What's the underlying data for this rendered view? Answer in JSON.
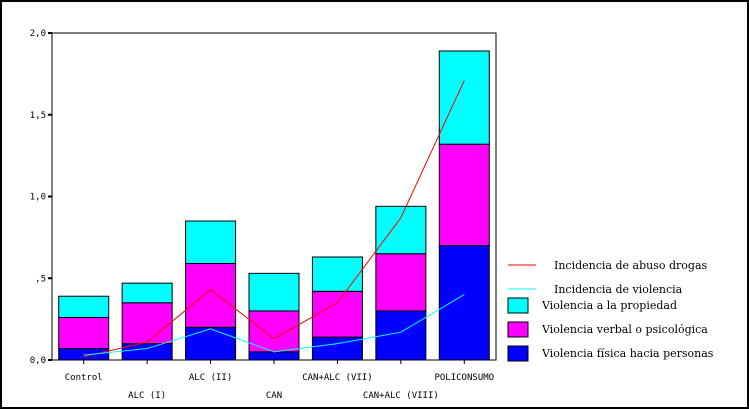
{
  "chart_data": {
    "type": "bar",
    "stacked": true,
    "title": "",
    "xlabel": "",
    "ylabel": "",
    "ylim": [
      0,
      2.0
    ],
    "yticks": [
      {
        "value": 0,
        "label": "0,0"
      },
      {
        "value": 0.5,
        "label": ",5"
      },
      {
        "value": 1.0,
        "label": "1,0"
      },
      {
        "value": 1.5,
        "label": "1,5"
      },
      {
        "value": 2.0,
        "label": "2,0"
      }
    ],
    "categories": [
      "Control",
      "ALC (I)",
      "ALC (II)",
      "CAN",
      "CAN+ALC (VII)",
      "CAN+ALC (VIII)",
      "POLICONSUMO"
    ],
    "series": [
      {
        "name": "Violencia física hacia personas",
        "color": "#0000ff",
        "values": [
          0.07,
          0.1,
          0.2,
          0.05,
          0.14,
          0.3,
          0.7
        ]
      },
      {
        "name": "Violencia verbal o psicológica",
        "color": "#ff00ff",
        "values": [
          0.19,
          0.25,
          0.39,
          0.25,
          0.28,
          0.35,
          0.62
        ]
      },
      {
        "name": "Violencia a la propiedad",
        "color": "#00ffff",
        "values": [
          0.13,
          0.12,
          0.26,
          0.23,
          0.21,
          0.29,
          0.57
        ]
      }
    ],
    "lines": [
      {
        "name": "Incidencia de abuso drogas",
        "color": "#ff0000",
        "values": [
          0.02,
          0.11,
          0.43,
          0.13,
          0.35,
          0.87,
          1.71
        ]
      },
      {
        "name": "Incidencia de violencia",
        "color": "#00ffff",
        "values": [
          0.03,
          0.07,
          0.19,
          0.05,
          0.1,
          0.17,
          0.4
        ]
      }
    ],
    "legend_position": "right",
    "grid": false
  }
}
